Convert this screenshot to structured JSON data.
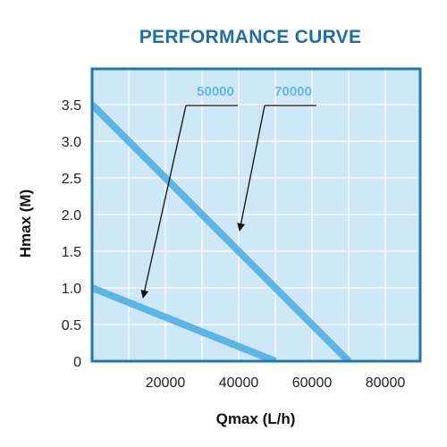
{
  "chart_data": {
    "type": "line",
    "title": "PERFORMANCE CURVE",
    "xlabel": "Qmax (L/h)",
    "ylabel": "Hmax (M)",
    "xlim": [
      0,
      90000
    ],
    "ylim": [
      0,
      3.5
    ],
    "x_ticks": [
      "20000",
      "40000",
      "60000",
      "80000"
    ],
    "y_ticks": [
      "0",
      "0.5",
      "1.0",
      "1.5",
      "2.0",
      "2.5",
      "3.0",
      "3.5"
    ],
    "grid": true,
    "series": [
      {
        "name": "50000",
        "x": [
          0,
          50000
        ],
        "y": [
          1.0,
          0
        ]
      },
      {
        "name": "70000",
        "x": [
          0,
          70000
        ],
        "y": [
          3.5,
          0
        ]
      }
    ],
    "colors": {
      "plot_background": "#cfe8f7",
      "frame": "#1f76b3",
      "line": "#5db5e6",
      "label": "#62b7e8",
      "title": "#1d6fa6",
      "grid": "#ffffff"
    }
  }
}
